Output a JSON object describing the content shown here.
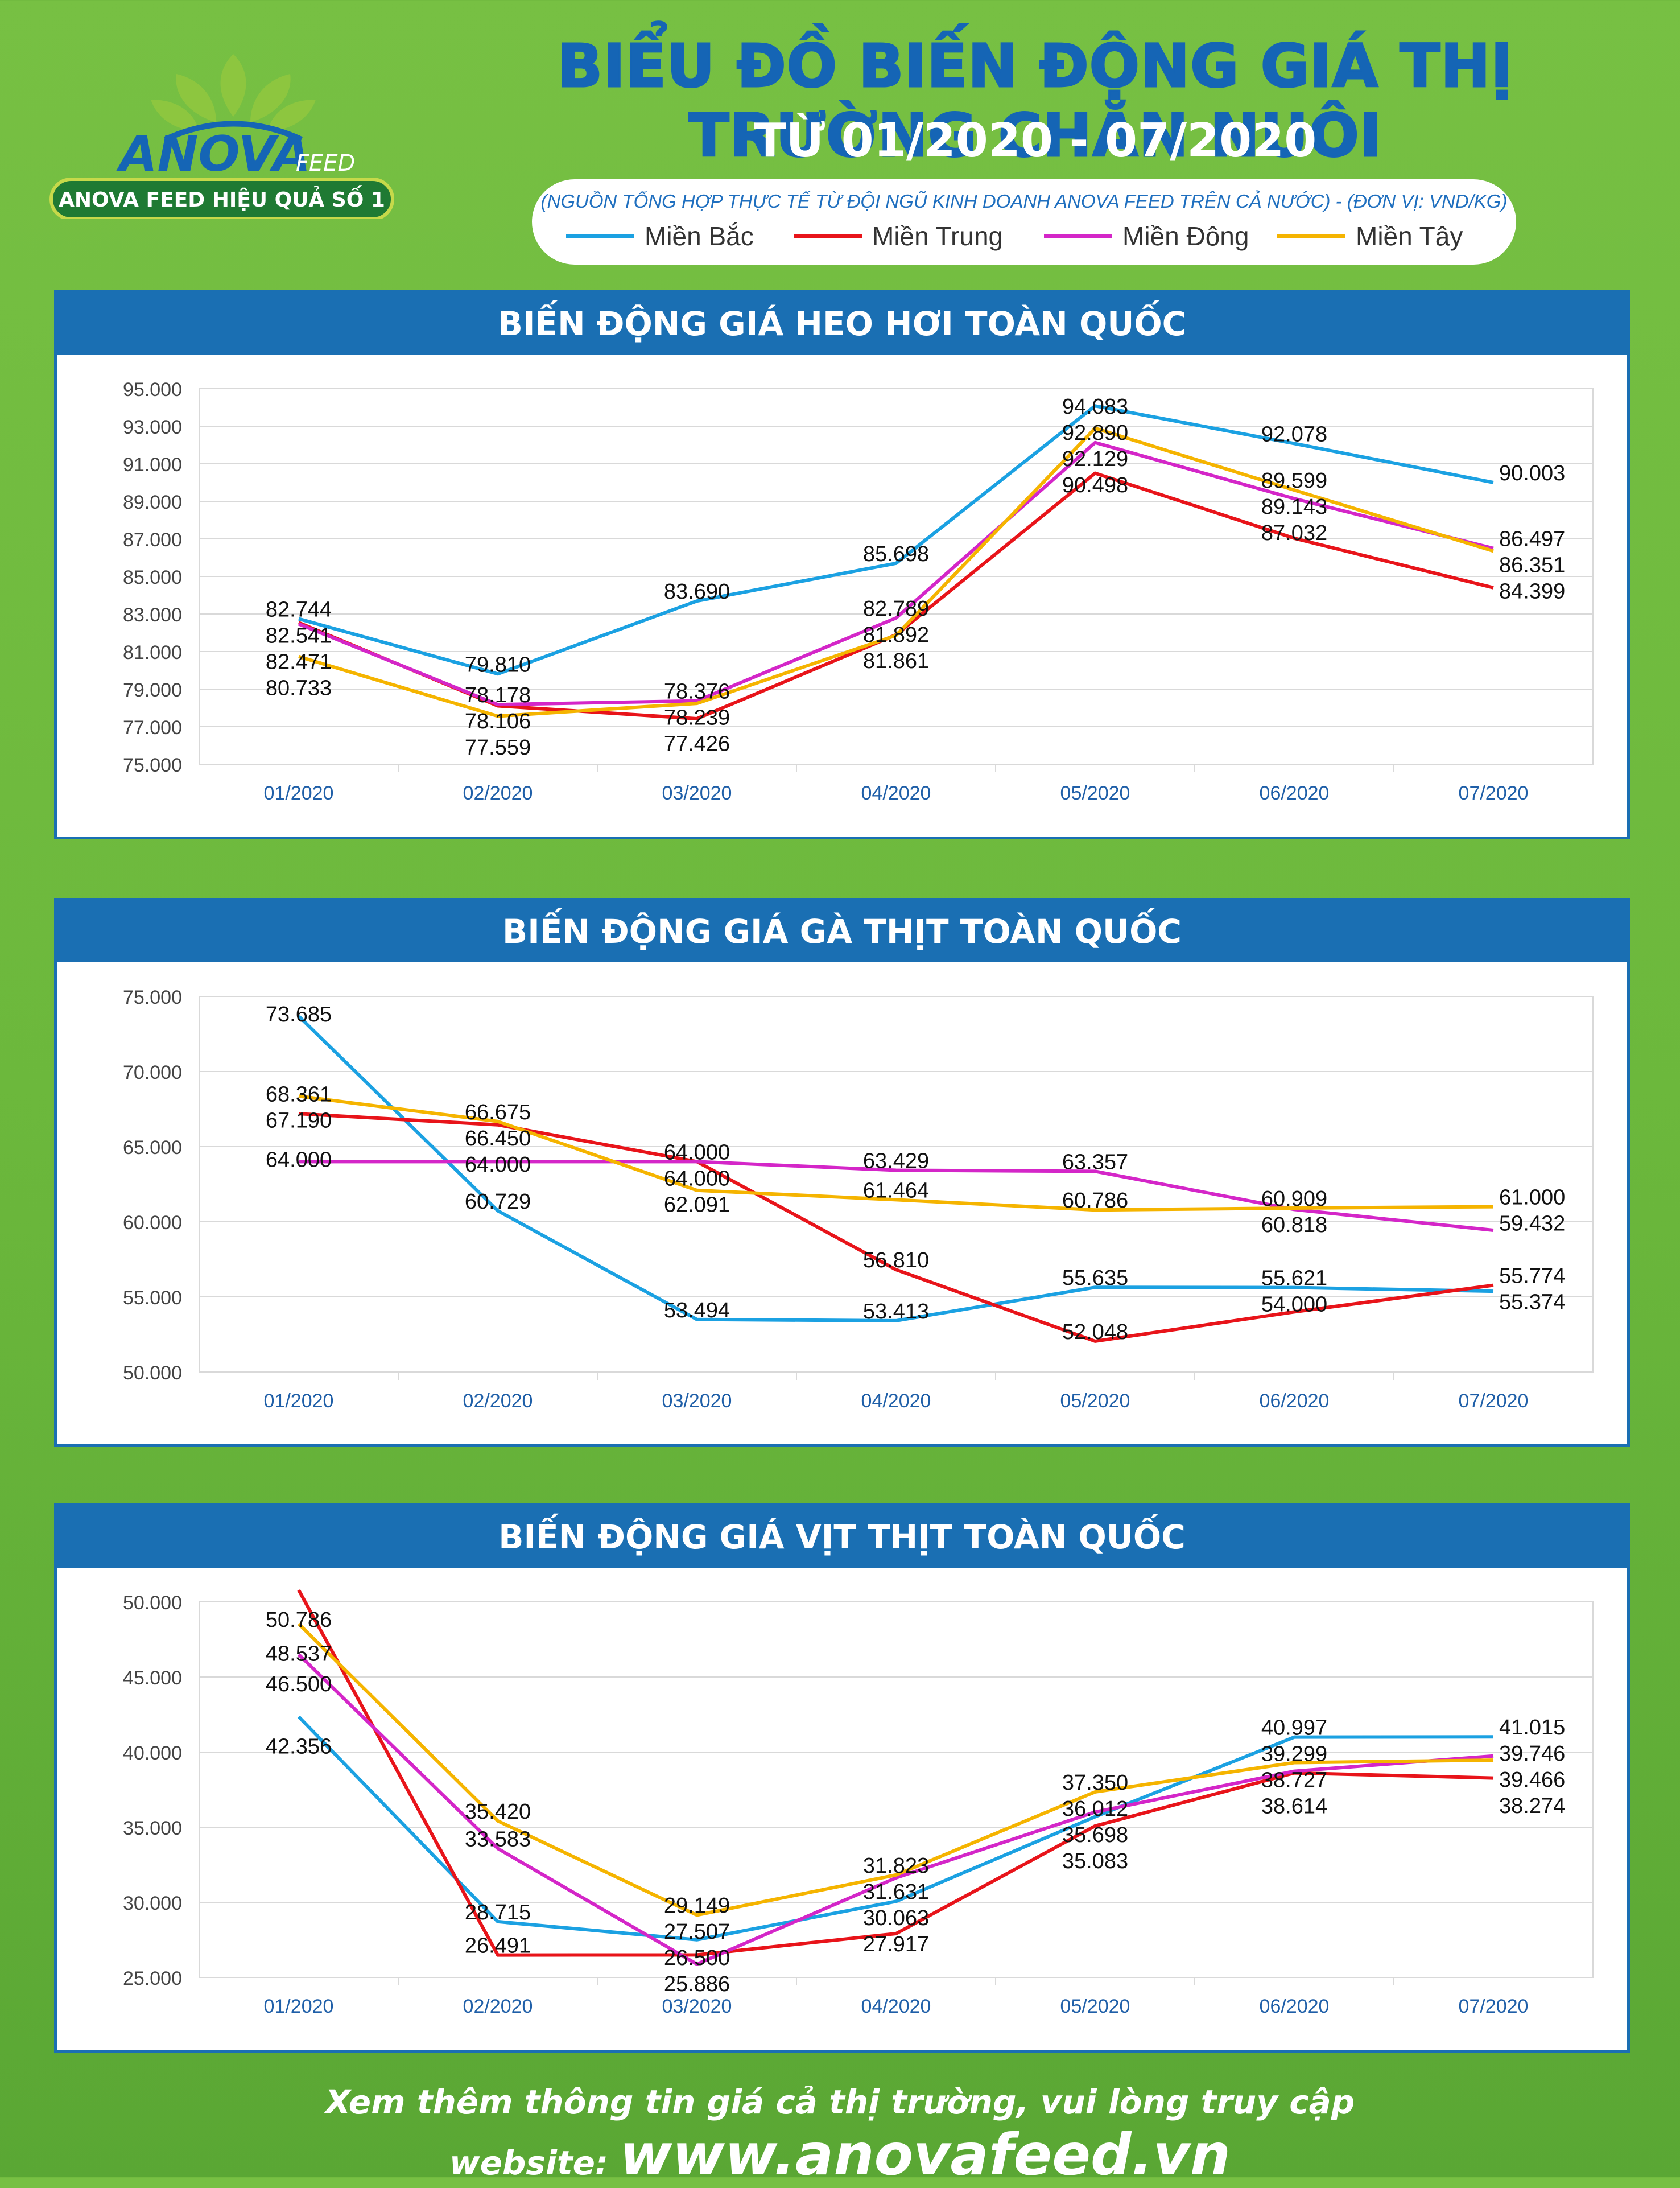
{
  "header": {
    "title": "BIỂU ĐỒ BIẾN ĐỘNG GIÁ THỊ TRƯỜNG CHĂN NUÔI",
    "subtitle": "TỪ 01/2020 - 07/2020",
    "source": "(NGUỒN TỔNG HỢP THỰC TẾ TỪ ĐỘI NGŨ KINH DOANH ANOVA FEED TRÊN CẢ NƯỚC)   -   (ĐƠN VỊ: VND/KG)"
  },
  "logo": {
    "brand_main": "ANOVA",
    "brand_sub": "FEED",
    "ribbon": "ANOVA FEED HIỆU QUẢ SỐ 1"
  },
  "legend": [
    {
      "name": "Miền Bắc",
      "color": "#1ba1e2"
    },
    {
      "name": "Miền Trung",
      "color": "#e8141a"
    },
    {
      "name": "Miền Đông",
      "color": "#d426c8"
    },
    {
      "name": "Miền Tây",
      "color": "#f5b400"
    }
  ],
  "chart_data": [
    {
      "type": "line",
      "title": "BIẾN ĐỘNG GIÁ HEO HƠI TOÀN QUỐC",
      "categories": [
        "01/2020",
        "02/2020",
        "03/2020",
        "04/2020",
        "05/2020",
        "06/2020",
        "07/2020"
      ],
      "ylim": [
        75000,
        95000
      ],
      "yticks": [
        "75.000",
        "77.000",
        "79.000",
        "81.000",
        "83.000",
        "85.000",
        "87.000",
        "89.000",
        "91.000",
        "93.000",
        "95.000"
      ],
      "grid": true,
      "series": [
        {
          "name": "Miền Bắc",
          "color": "#1ba1e2",
          "values": [
            82744,
            79810,
            83690,
            85698,
            94083,
            92078,
            90003
          ],
          "labels": [
            "82.744",
            "79.810",
            "83.690",
            "85.698",
            "94.083",
            "92.078",
            "90.003"
          ]
        },
        {
          "name": "Miền Trung",
          "color": "#e8141a",
          "values": [
            82541,
            78106,
            77426,
            81892,
            90498,
            87032,
            84399
          ],
          "labels": [
            "82.541",
            "78.106",
            "77.426",
            "81.892",
            "90.498",
            "87.032",
            "84.399"
          ]
        },
        {
          "name": "Miền Đông",
          "color": "#d426c8",
          "values": [
            82471,
            78178,
            78376,
            82789,
            92129,
            89143,
            86497
          ],
          "labels": [
            "82.471",
            "78.178",
            "78.376",
            "82.789",
            "92.129",
            "89.143",
            "86.497"
          ]
        },
        {
          "name": "Miền Tây",
          "color": "#f5b400",
          "values": [
            80733,
            77559,
            78239,
            81861,
            92890,
            89599,
            86351
          ],
          "labels": [
            "80.733",
            "77.559",
            "78.239",
            "81.861",
            "92.890",
            "89.599",
            "86.351"
          ]
        }
      ]
    },
    {
      "type": "line",
      "title": "BIẾN ĐỘNG GIÁ GÀ THỊT TOÀN QUỐC",
      "categories": [
        "01/2020",
        "02/2020",
        "03/2020",
        "04/2020",
        "05/2020",
        "06/2020",
        "07/2020"
      ],
      "ylim": [
        50000,
        75000
      ],
      "yticks": [
        "50.000",
        "55.000",
        "60.000",
        "65.000",
        "70.000",
        "75.000"
      ],
      "grid": true,
      "series": [
        {
          "name": "Miền Bắc",
          "color": "#1ba1e2",
          "values": [
            73685,
            60729,
            53494,
            53413,
            55635,
            55621,
            55374
          ],
          "labels": [
            "73.685",
            "60.729",
            "53.494",
            "53.413",
            "55.635",
            "55.621",
            "55.374"
          ]
        },
        {
          "name": "Miền Trung",
          "color": "#e8141a",
          "values": [
            67190,
            66450,
            64000,
            56810,
            52048,
            54000,
            55774
          ],
          "labels": [
            "67.190",
            "66.450",
            "64.000",
            "56.810",
            "52.048",
            "54.000",
            "55.774"
          ]
        },
        {
          "name": "Miền Đông",
          "color": "#d426c8",
          "values": [
            64000,
            64000,
            64000,
            63429,
            63357,
            60818,
            59432
          ],
          "labels": [
            "64.000",
            "64.000",
            "64.000",
            "63.429",
            "63.357",
            "60.818",
            "59.432"
          ]
        },
        {
          "name": "Miền Tây",
          "color": "#f5b400",
          "values": [
            68361,
            66675,
            62091,
            61464,
            60786,
            60909,
            61000
          ],
          "labels": [
            "68.361",
            "66.675",
            "62.091",
            "61.464",
            "60.786",
            "60.909",
            "61.000"
          ]
        }
      ]
    },
    {
      "type": "line",
      "title": "BIẾN ĐỘNG GIÁ VỊT THỊT TOÀN QUỐC",
      "categories": [
        "01/2020",
        "02/2020",
        "03/2020",
        "04/2020",
        "05/2020",
        "06/2020",
        "07/2020"
      ],
      "ylim": [
        25000,
        50000
      ],
      "yticks": [
        "25.000",
        "30.000",
        "35.000",
        "40.000",
        "45.000",
        "50.000"
      ],
      "grid": true,
      "series": [
        {
          "name": "Miền Bắc",
          "color": "#1ba1e2",
          "values": [
            42356,
            28715,
            27507,
            30063,
            35698,
            40997,
            41015
          ],
          "labels": [
            "42.356",
            "28.715",
            "27.507",
            "30.063",
            "35.698",
            "40.997",
            "41.015"
          ]
        },
        {
          "name": "Miền Trung",
          "color": "#e8141a",
          "values": [
            50786,
            26491,
            26500,
            27917,
            35083,
            38614,
            38274
          ],
          "labels": [
            "50.786",
            "26.491",
            "26.500",
            "27.917",
            "35.083",
            "38.614",
            "38.274"
          ]
        },
        {
          "name": "Miền Đông",
          "color": "#d426c8",
          "values": [
            46500,
            33583,
            25886,
            31631,
            36012,
            38727,
            39746
          ],
          "labels": [
            "46.500",
            "33.583",
            "25.886",
            "31.631",
            "36.012",
            "38.727",
            "39.746"
          ]
        },
        {
          "name": "Miền Tây",
          "color": "#f5b400",
          "values": [
            48537,
            35420,
            29149,
            31823,
            37350,
            39299,
            39466
          ],
          "labels": [
            "48.537",
            "35.420",
            "29.149",
            "31.823",
            "37.350",
            "39.299",
            "39.466"
          ]
        }
      ]
    }
  ],
  "footer": {
    "text": "Xem thêm thông tin giá cả thị trường, vui lòng truy cập website:",
    "url": "www.anovafeed.vn"
  }
}
